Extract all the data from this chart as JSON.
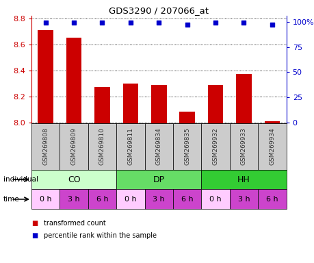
{
  "title": "GDS3290 / 207066_at",
  "samples": [
    "GSM269808",
    "GSM269809",
    "GSM269810",
    "GSM269811",
    "GSM269834",
    "GSM269835",
    "GSM269932",
    "GSM269933",
    "GSM269934"
  ],
  "bar_values": [
    8.71,
    8.65,
    8.27,
    8.3,
    8.29,
    8.08,
    8.29,
    8.37,
    8.01
  ],
  "percentile_values": [
    99,
    99,
    99,
    99,
    99,
    97,
    99,
    99,
    97
  ],
  "ylim_left": [
    7.99,
    8.82
  ],
  "ylim_right": [
    -1.0,
    106.0
  ],
  "yticks_left": [
    8.0,
    8.2,
    8.4,
    8.6,
    8.8
  ],
  "yticks_right": [
    0,
    25,
    50,
    75,
    100
  ],
  "bar_color": "#cc0000",
  "dot_color": "#0000cc",
  "groups": [
    {
      "label": "CO",
      "start": 0,
      "end": 3,
      "color": "#ccffcc"
    },
    {
      "label": "DP",
      "start": 3,
      "end": 6,
      "color": "#66dd66"
    },
    {
      "label": "HH",
      "start": 6,
      "end": 9,
      "color": "#33cc33"
    }
  ],
  "time_labels": [
    "0 h",
    "3 h",
    "6 h",
    "0 h",
    "3 h",
    "6 h",
    "0 h",
    "3 h",
    "6 h"
  ],
  "time_colors": [
    "#ffccff",
    "#cc44cc",
    "#cc44cc",
    "#ffccff",
    "#cc44cc",
    "#cc44cc",
    "#ffccff",
    "#cc44cc",
    "#cc44cc"
  ],
  "individual_label": "individual",
  "time_label": "time",
  "legend_red": "transformed count",
  "legend_blue": "percentile rank within the sample",
  "gsm_label_color": "#333333",
  "sample_box_color": "#cccccc",
  "right_axis_color": "#0000cc",
  "left_axis_color": "#cc0000",
  "fig_width": 4.6,
  "fig_height": 3.84,
  "dpi": 100
}
